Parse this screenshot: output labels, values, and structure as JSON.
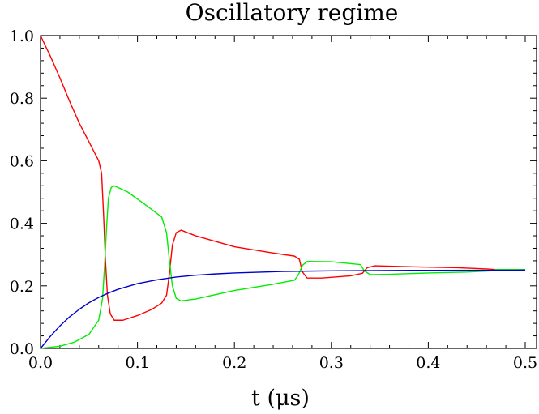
{
  "chart_data": {
    "type": "line",
    "title": "Oscillatory regime",
    "xlabel": "t (μs)",
    "ylabel": "",
    "xlim": [
      0,
      0.5
    ],
    "ylim": [
      0,
      1.0
    ],
    "x_ticks": [
      "0.0",
      "0.1",
      "0.2",
      "0.3",
      "0.4",
      "0.5"
    ],
    "y_ticks": [
      "0.0",
      "0.2",
      "0.4",
      "0.6",
      "0.8",
      "1.0"
    ],
    "grid": false,
    "legend": "none",
    "series": [
      {
        "color": "#ff0000",
        "points": [
          [
            0.0,
            1.0
          ],
          [
            0.01,
            0.935
          ],
          [
            0.02,
            0.865
          ],
          [
            0.03,
            0.79
          ],
          [
            0.04,
            0.72
          ],
          [
            0.05,
            0.66
          ],
          [
            0.055,
            0.63
          ],
          [
            0.06,
            0.6
          ],
          [
            0.063,
            0.56
          ],
          [
            0.065,
            0.43
          ],
          [
            0.067,
            0.28
          ],
          [
            0.069,
            0.17
          ],
          [
            0.072,
            0.11
          ],
          [
            0.076,
            0.09
          ],
          [
            0.085,
            0.09
          ],
          [
            0.1,
            0.105
          ],
          [
            0.115,
            0.125
          ],
          [
            0.125,
            0.145
          ],
          [
            0.13,
            0.17
          ],
          [
            0.133,
            0.24
          ],
          [
            0.136,
            0.33
          ],
          [
            0.14,
            0.37
          ],
          [
            0.145,
            0.378
          ],
          [
            0.16,
            0.36
          ],
          [
            0.2,
            0.325
          ],
          [
            0.24,
            0.305
          ],
          [
            0.262,
            0.295
          ],
          [
            0.267,
            0.285
          ],
          [
            0.27,
            0.245
          ],
          [
            0.275,
            0.225
          ],
          [
            0.29,
            0.225
          ],
          [
            0.32,
            0.232
          ],
          [
            0.332,
            0.24
          ],
          [
            0.337,
            0.258
          ],
          [
            0.345,
            0.264
          ],
          [
            0.38,
            0.261
          ],
          [
            0.43,
            0.258
          ],
          [
            0.46,
            0.254
          ],
          [
            0.47,
            0.252
          ],
          [
            0.5,
            0.25
          ]
        ]
      },
      {
        "color": "#00ee00",
        "points": [
          [
            0.0,
            0.0
          ],
          [
            0.02,
            0.007
          ],
          [
            0.035,
            0.02
          ],
          [
            0.05,
            0.045
          ],
          [
            0.06,
            0.09
          ],
          [
            0.064,
            0.16
          ],
          [
            0.066,
            0.26
          ],
          [
            0.068,
            0.38
          ],
          [
            0.07,
            0.48
          ],
          [
            0.073,
            0.515
          ],
          [
            0.076,
            0.52
          ],
          [
            0.09,
            0.5
          ],
          [
            0.11,
            0.455
          ],
          [
            0.125,
            0.42
          ],
          [
            0.13,
            0.37
          ],
          [
            0.133,
            0.28
          ],
          [
            0.136,
            0.2
          ],
          [
            0.14,
            0.16
          ],
          [
            0.145,
            0.152
          ],
          [
            0.16,
            0.158
          ],
          [
            0.2,
            0.185
          ],
          [
            0.24,
            0.205
          ],
          [
            0.262,
            0.218
          ],
          [
            0.266,
            0.235
          ],
          [
            0.27,
            0.265
          ],
          [
            0.275,
            0.278
          ],
          [
            0.3,
            0.277
          ],
          [
            0.33,
            0.268
          ],
          [
            0.334,
            0.248
          ],
          [
            0.34,
            0.236
          ],
          [
            0.36,
            0.237
          ],
          [
            0.4,
            0.241
          ],
          [
            0.44,
            0.244
          ],
          [
            0.465,
            0.248
          ],
          [
            0.47,
            0.252
          ],
          [
            0.5,
            0.252
          ]
        ]
      },
      {
        "color": "#0000cc",
        "points": [
          [
            0.0,
            0.0
          ],
          [
            0.01,
            0.038
          ],
          [
            0.02,
            0.072
          ],
          [
            0.03,
            0.101
          ],
          [
            0.04,
            0.125
          ],
          [
            0.05,
            0.146
          ],
          [
            0.06,
            0.163
          ],
          [
            0.07,
            0.177
          ],
          [
            0.08,
            0.189
          ],
          [
            0.1,
            0.207
          ],
          [
            0.12,
            0.219
          ],
          [
            0.14,
            0.228
          ],
          [
            0.16,
            0.234
          ],
          [
            0.18,
            0.238
          ],
          [
            0.2,
            0.241
          ],
          [
            0.25,
            0.246
          ],
          [
            0.3,
            0.248
          ],
          [
            0.35,
            0.249
          ],
          [
            0.4,
            0.2495
          ],
          [
            0.45,
            0.2498
          ],
          [
            0.5,
            0.25
          ]
        ]
      }
    ]
  }
}
